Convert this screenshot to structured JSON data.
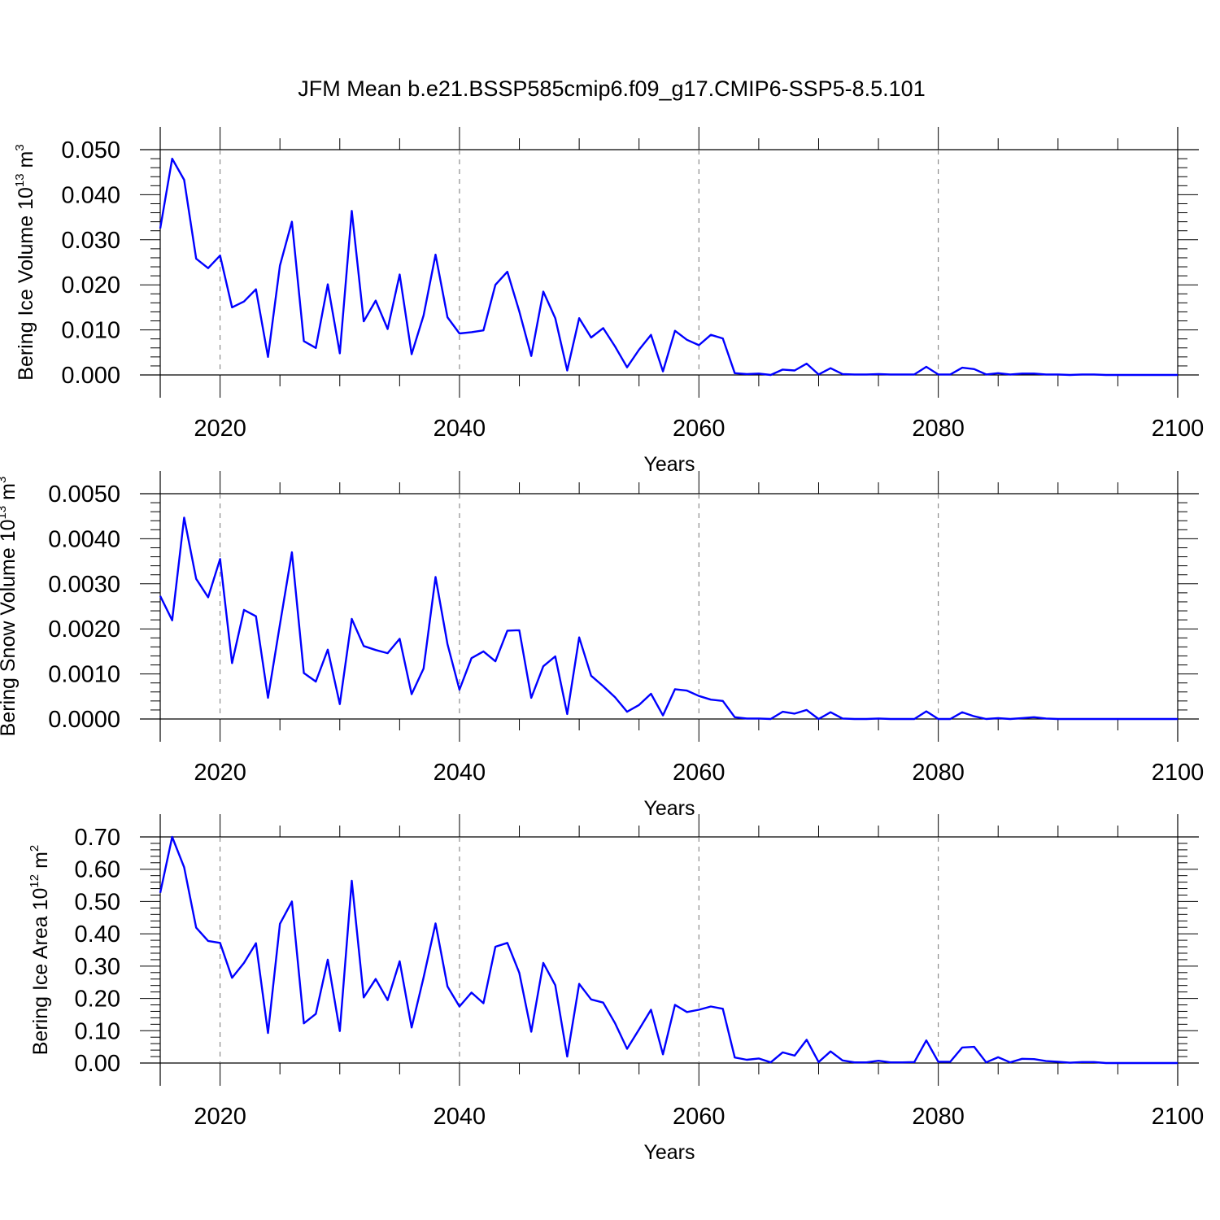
{
  "title": "JFM Mean b.e21.BSSP585cmip6.f09_g17.CMIP6-SSP5-8.5.101",
  "chart_data": [
    {
      "type": "line",
      "ylabel_prefix": "Bering Ice Volume 10",
      "ylabel_exponent": "13",
      "ylabel_unit": " m",
      "ylabel_unit_exponent": "3",
      "xlabel": "Years",
      "xlim": [
        2015,
        2100
      ],
      "ylim": [
        0,
        0.05
      ],
      "yticks": [
        "0.000",
        "0.010",
        "0.020",
        "0.030",
        "0.040",
        "0.050"
      ],
      "xticks": [
        "2020",
        "2040",
        "2060",
        "2080",
        "2100"
      ],
      "series": [
        {
          "name": "Bering Ice Volume",
          "color": "#0000ff",
          "x": [
            2015,
            2016,
            2017,
            2018,
            2019,
            2020,
            2021,
            2022,
            2023,
            2024,
            2025,
            2026,
            2027,
            2028,
            2029,
            2030,
            2031,
            2032,
            2033,
            2034,
            2035,
            2036,
            2037,
            2038,
            2039,
            2040,
            2041,
            2042,
            2043,
            2044,
            2045,
            2046,
            2047,
            2048,
            2049,
            2050,
            2051,
            2052,
            2053,
            2054,
            2055,
            2056,
            2057,
            2058,
            2059,
            2060,
            2061,
            2062,
            2063,
            2064,
            2065,
            2066,
            2067,
            2068,
            2069,
            2070,
            2071,
            2072,
            2073,
            2074,
            2075,
            2076,
            2077,
            2078,
            2079,
            2080,
            2081,
            2082,
            2083,
            2084,
            2085,
            2086,
            2087,
            2088,
            2089,
            2090,
            2091,
            2092,
            2093,
            2094,
            2095,
            2096,
            2097,
            2098,
            2099,
            2100
          ],
          "values": [
            0.0325,
            0.048,
            0.0433,
            0.0258,
            0.0237,
            0.0265,
            0.015,
            0.0163,
            0.019,
            0.004,
            0.0243,
            0.034,
            0.0075,
            0.006,
            0.0201,
            0.0048,
            0.0364,
            0.0119,
            0.0165,
            0.0102,
            0.0223,
            0.0046,
            0.0132,
            0.0267,
            0.0128,
            0.0092,
            0.0095,
            0.0099,
            0.02,
            0.0229,
            0.0141,
            0.0042,
            0.0185,
            0.0126,
            0.001,
            0.0126,
            0.0083,
            0.0104,
            0.0063,
            0.0017,
            0.0056,
            0.0089,
            0.0008,
            0.0098,
            0.0078,
            0.0066,
            0.0089,
            0.0081,
            0.0004,
            0.0002,
            0.0003,
            0.0,
            0.0012,
            0.001,
            0.0025,
            0.0001,
            0.0015,
            0.0002,
            0.0001,
            0.0001,
            0.0002,
            0.0001,
            0.0001,
            0.0001,
            0.0018,
            0.0001,
            0.0001,
            0.0016,
            0.0013,
            0.0001,
            0.0004,
            0.0001,
            0.0003,
            0.0003,
            0.0001,
            0.0001,
            0.0,
            0.0001,
            0.0001,
            0.0,
            0.0,
            0.0,
            0.0,
            0.0,
            0.0,
            0.0
          ]
        }
      ]
    },
    {
      "type": "line",
      "ylabel_prefix": "Bering Snow Volume 10",
      "ylabel_exponent": "13",
      "ylabel_unit": " m",
      "ylabel_unit_exponent": "3",
      "xlabel": "Years",
      "xlim": [
        2015,
        2100
      ],
      "ylim": [
        0,
        0.005
      ],
      "yticks": [
        "0.0000",
        "0.0010",
        "0.0020",
        "0.0030",
        "0.0040",
        "0.0050"
      ],
      "xticks": [
        "2020",
        "2040",
        "2060",
        "2080",
        "2100"
      ],
      "series": [
        {
          "name": "Bering Snow Volume",
          "color": "#0000ff",
          "x": [
            2015,
            2016,
            2017,
            2018,
            2019,
            2020,
            2021,
            2022,
            2023,
            2024,
            2025,
            2026,
            2027,
            2028,
            2029,
            2030,
            2031,
            2032,
            2033,
            2034,
            2035,
            2036,
            2037,
            2038,
            2039,
            2040,
            2041,
            2042,
            2043,
            2044,
            2045,
            2046,
            2047,
            2048,
            2049,
            2050,
            2051,
            2052,
            2053,
            2054,
            2055,
            2056,
            2057,
            2058,
            2059,
            2060,
            2061,
            2062,
            2063,
            2064,
            2065,
            2066,
            2067,
            2068,
            2069,
            2070,
            2071,
            2072,
            2073,
            2074,
            2075,
            2076,
            2077,
            2078,
            2079,
            2080,
            2081,
            2082,
            2083,
            2084,
            2085,
            2086,
            2087,
            2088,
            2089,
            2090,
            2091,
            2092,
            2093,
            2094,
            2095,
            2096,
            2097,
            2098,
            2099,
            2100
          ],
          "values": [
            0.00273,
            0.00219,
            0.00447,
            0.00311,
            0.0027,
            0.00355,
            0.00124,
            0.00242,
            0.00228,
            0.00047,
            0.0021,
            0.0037,
            0.00102,
            0.00083,
            0.00154,
            0.00033,
            0.00222,
            0.00162,
            0.00153,
            0.00146,
            0.00178,
            0.00055,
            0.00112,
            0.00315,
            0.00166,
            0.00065,
            0.00135,
            0.0015,
            0.00128,
            0.00196,
            0.00197,
            0.00047,
            0.00117,
            0.00139,
            0.00011,
            0.00181,
            0.00096,
            0.00073,
            0.00048,
            0.00016,
            0.00031,
            0.00056,
            8e-05,
            0.00066,
            0.00063,
            0.00051,
            0.00043,
            0.0004,
            4e-05,
            1e-05,
            1e-05,
            0.0,
            0.00016,
            0.00012,
            0.0002,
            0.0,
            0.00015,
            1e-05,
            0.0,
            0.0,
            1e-05,
            0.0,
            0.0,
            0.0,
            0.00017,
            0.0,
            0.0,
            0.00015,
            6e-05,
            0.0,
            2e-05,
            0.0,
            2e-05,
            4e-05,
            1e-05,
            0.0,
            0.0,
            0.0,
            0.0,
            0.0,
            0.0,
            0.0,
            0.0,
            0.0,
            0.0,
            0.0
          ]
        }
      ]
    },
    {
      "type": "line",
      "ylabel_prefix": "Bering Ice Area 10",
      "ylabel_exponent": "12",
      "ylabel_unit": " m",
      "ylabel_unit_exponent": "2",
      "xlabel": "Years",
      "xlim": [
        2015,
        2100
      ],
      "ylim": [
        0,
        0.7
      ],
      "yticks": [
        "0.00",
        "0.10",
        "0.20",
        "0.30",
        "0.40",
        "0.50",
        "0.60",
        "0.70"
      ],
      "xticks": [
        "2020",
        "2040",
        "2060",
        "2080",
        "2100"
      ],
      "series": [
        {
          "name": "Bering Ice Area",
          "color": "#0000ff",
          "x": [
            2015,
            2016,
            2017,
            2018,
            2019,
            2020,
            2021,
            2022,
            2023,
            2024,
            2025,
            2026,
            2027,
            2028,
            2029,
            2030,
            2031,
            2032,
            2033,
            2034,
            2035,
            2036,
            2037,
            2038,
            2039,
            2040,
            2041,
            2042,
            2043,
            2044,
            2045,
            2046,
            2047,
            2048,
            2049,
            2050,
            2051,
            2052,
            2053,
            2054,
            2055,
            2056,
            2057,
            2058,
            2059,
            2060,
            2061,
            2062,
            2063,
            2064,
            2065,
            2066,
            2067,
            2068,
            2069,
            2070,
            2071,
            2072,
            2073,
            2074,
            2075,
            2076,
            2077,
            2078,
            2079,
            2080,
            2081,
            2082,
            2083,
            2084,
            2085,
            2086,
            2087,
            2088,
            2089,
            2090,
            2091,
            2092,
            2093,
            2094,
            2095,
            2096,
            2097,
            2098,
            2099,
            2100
          ],
          "values": [
            0.527,
            0.7,
            0.606,
            0.419,
            0.378,
            0.372,
            0.264,
            0.31,
            0.371,
            0.093,
            0.431,
            0.5,
            0.123,
            0.152,
            0.32,
            0.099,
            0.564,
            0.203,
            0.26,
            0.195,
            0.315,
            0.11,
            0.265,
            0.432,
            0.237,
            0.175,
            0.218,
            0.185,
            0.36,
            0.372,
            0.279,
            0.097,
            0.31,
            0.241,
            0.02,
            0.245,
            0.197,
            0.187,
            0.123,
            0.044,
            0.104,
            0.165,
            0.027,
            0.18,
            0.158,
            0.165,
            0.175,
            0.168,
            0.017,
            0.01,
            0.014,
            0.002,
            0.033,
            0.023,
            0.072,
            0.003,
            0.036,
            0.008,
            0.002,
            0.002,
            0.007,
            0.002,
            0.002,
            0.003,
            0.07,
            0.004,
            0.004,
            0.048,
            0.05,
            0.002,
            0.018,
            0.002,
            0.013,
            0.012,
            0.006,
            0.004,
            0.001,
            0.003,
            0.003,
            0.0,
            0.0,
            0.0,
            0.0,
            0.0,
            0.0,
            0.0
          ]
        }
      ]
    }
  ]
}
